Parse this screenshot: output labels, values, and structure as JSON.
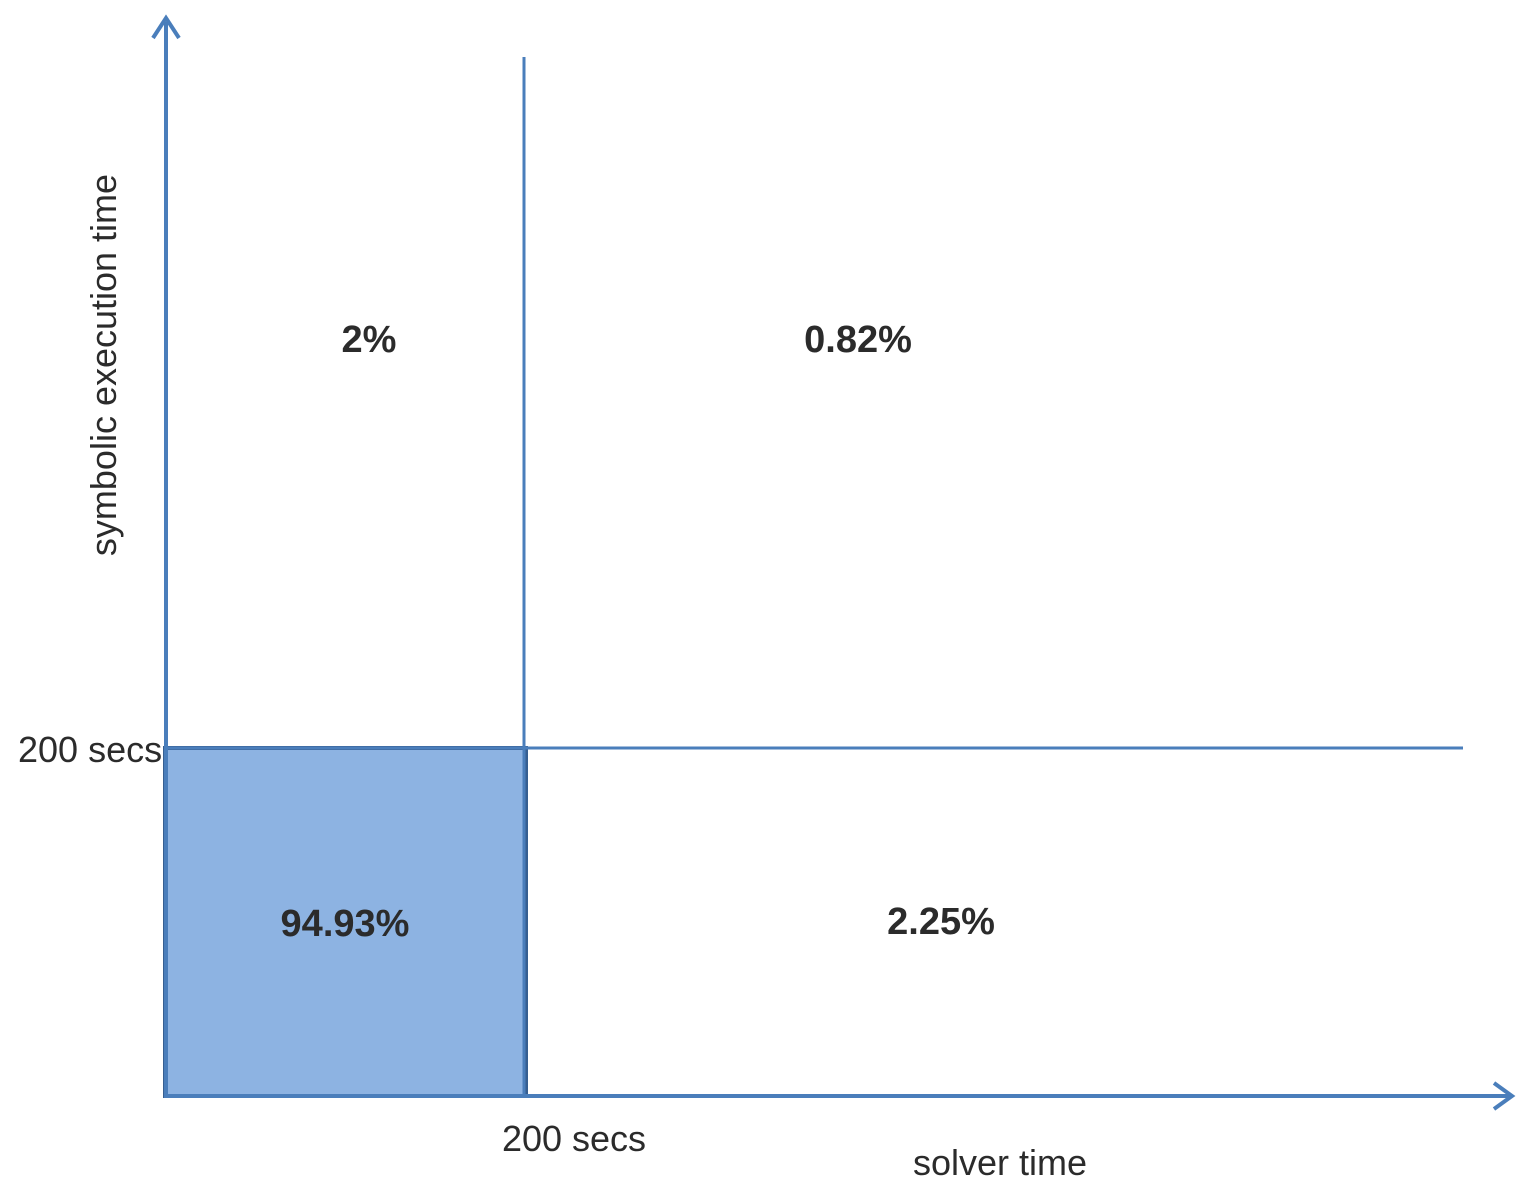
{
  "axes": {
    "y_label": "symbolic execution time",
    "x_label": "solver time",
    "y_threshold_label": "200 secs",
    "x_threshold_label": "200 secs"
  },
  "quadrants": {
    "top_left": "2%",
    "top_right": "0.82%",
    "bottom_left": "94.93%",
    "bottom_right": "2.25%"
  },
  "colors": {
    "axis": "#4a7ebb",
    "highlight_fill": "#8db3e2",
    "highlight_border": "#365f91",
    "text": "#2b2b2b"
  }
}
